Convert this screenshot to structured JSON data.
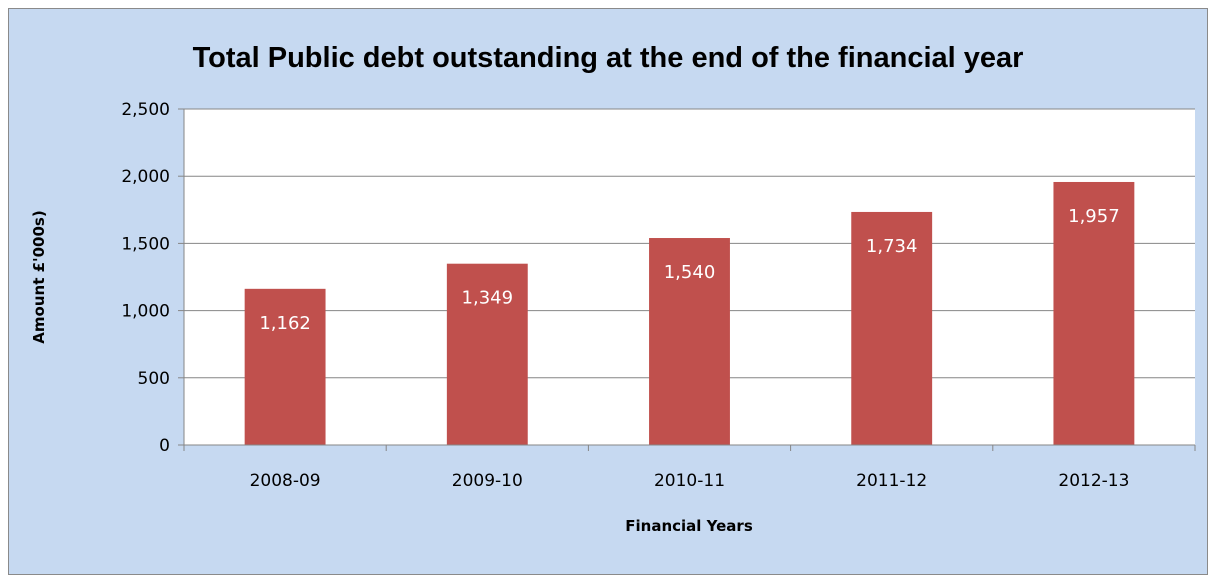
{
  "chart_data": {
    "type": "bar",
    "title": "Total Public debt outstanding at the end of the financial year",
    "xlabel": "Financial Years",
    "ylabel": "Amount £'000s)",
    "categories": [
      "2008-09",
      "2009-10",
      "2010-11",
      "2011-12",
      "2012-13"
    ],
    "values": [
      1162,
      1349,
      1540,
      1734,
      1957
    ],
    "data_labels": [
      "1,162",
      "1,349",
      "1,540",
      "1,734",
      "1,957"
    ],
    "ylim": [
      0,
      2500
    ],
    "yticks": [
      0,
      500,
      1000,
      1500,
      2000,
      2500
    ],
    "ytick_labels": [
      "0",
      "500",
      "1,000",
      "1,500",
      "2,000",
      "2,500"
    ],
    "grid": true,
    "legend": "none",
    "colors": {
      "bar": "#c0504d",
      "plot_background": "#ffffff",
      "chart_background": "#c6d9f1",
      "gridline": "#868686",
      "data_label": "#ffffff"
    }
  }
}
